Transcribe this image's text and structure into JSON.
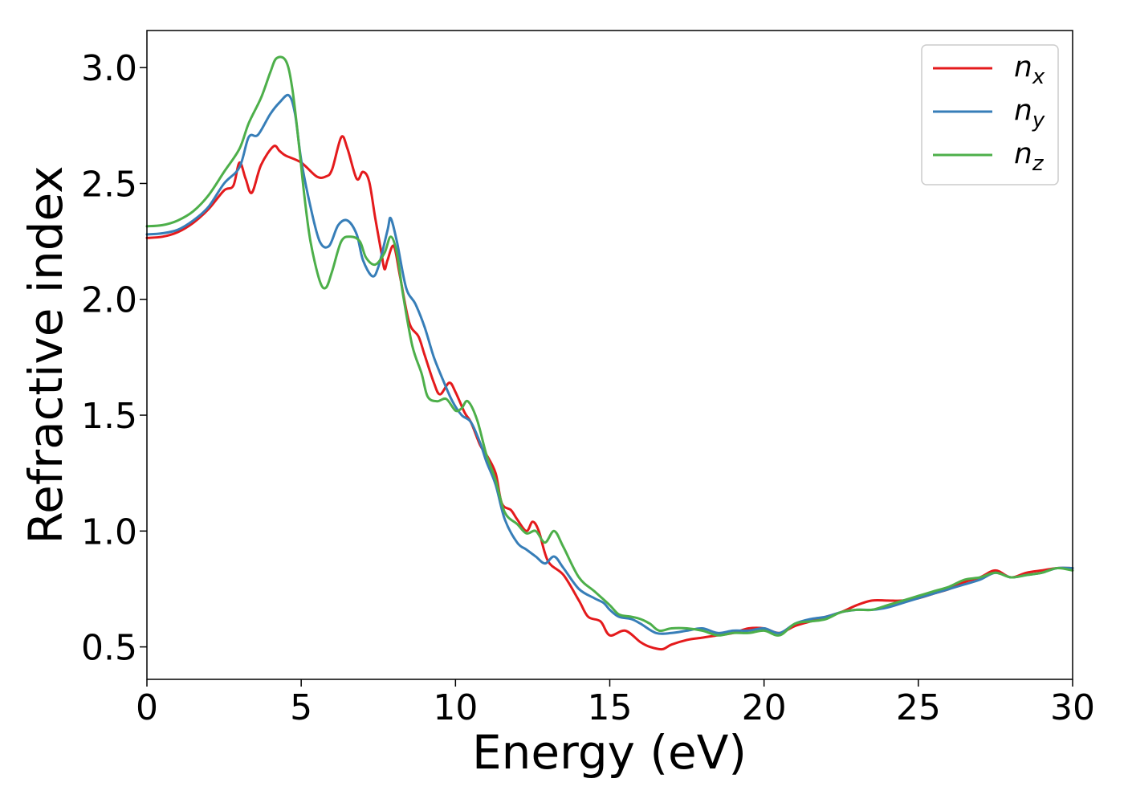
{
  "chart_data": {
    "type": "line",
    "xlabel": "Energy (eV)",
    "ylabel": "Refractive index",
    "xlim": [
      0,
      30
    ],
    "ylim": [
      0.36,
      3.16
    ],
    "xticks": [
      0,
      5,
      10,
      15,
      20,
      25,
      30
    ],
    "yticks": [
      0.5,
      1.0,
      1.5,
      2.0,
      2.5,
      3.0
    ],
    "xtick_labels": [
      "0",
      "5",
      "10",
      "15",
      "20",
      "25",
      "30"
    ],
    "ytick_labels": [
      "0.5",
      "1.0",
      "1.5",
      "2.0",
      "2.5",
      "3.0"
    ],
    "grid": false,
    "legend_position": "top-right",
    "series": [
      {
        "name_base": "n",
        "name_sub": "x",
        "color": "#e41a1c",
        "points": [
          [
            0,
            2.265
          ],
          [
            0.5,
            2.27
          ],
          [
            1,
            2.29
          ],
          [
            1.5,
            2.33
          ],
          [
            2,
            2.39
          ],
          [
            2.5,
            2.47
          ],
          [
            2.8,
            2.49
          ],
          [
            3.0,
            2.59
          ],
          [
            3.2,
            2.52
          ],
          [
            3.4,
            2.46
          ],
          [
            3.7,
            2.58
          ],
          [
            4.1,
            2.66
          ],
          [
            4.3,
            2.64
          ],
          [
            4.5,
            2.62
          ],
          [
            5.0,
            2.59
          ],
          [
            5.5,
            2.53
          ],
          [
            5.8,
            2.53
          ],
          [
            6.0,
            2.56
          ],
          [
            6.3,
            2.7
          ],
          [
            6.5,
            2.65
          ],
          [
            6.8,
            2.52
          ],
          [
            7.0,
            2.55
          ],
          [
            7.2,
            2.51
          ],
          [
            7.4,
            2.35
          ],
          [
            7.6,
            2.2
          ],
          [
            7.7,
            2.13
          ],
          [
            7.8,
            2.17
          ],
          [
            8.0,
            2.23
          ],
          [
            8.2,
            2.1
          ],
          [
            8.5,
            1.9
          ],
          [
            8.8,
            1.84
          ],
          [
            9.0,
            1.76
          ],
          [
            9.3,
            1.64
          ],
          [
            9.5,
            1.59
          ],
          [
            9.8,
            1.64
          ],
          [
            10.0,
            1.6
          ],
          [
            10.3,
            1.51
          ],
          [
            10.5,
            1.47
          ],
          [
            10.8,
            1.37
          ],
          [
            11.0,
            1.33
          ],
          [
            11.3,
            1.25
          ],
          [
            11.5,
            1.12
          ],
          [
            11.8,
            1.09
          ],
          [
            12.0,
            1.05
          ],
          [
            12.3,
            1.0
          ],
          [
            12.5,
            1.04
          ],
          [
            12.7,
            1.0
          ],
          [
            13.0,
            0.87
          ],
          [
            13.5,
            0.81
          ],
          [
            14.0,
            0.7
          ],
          [
            14.3,
            0.63
          ],
          [
            14.7,
            0.61
          ],
          [
            15.0,
            0.55
          ],
          [
            15.5,
            0.57
          ],
          [
            16.0,
            0.52
          ],
          [
            16.3,
            0.5
          ],
          [
            16.7,
            0.49
          ],
          [
            17.0,
            0.51
          ],
          [
            17.5,
            0.53
          ],
          [
            18.0,
            0.54
          ],
          [
            18.5,
            0.55
          ],
          [
            19.0,
            0.56
          ],
          [
            19.5,
            0.58
          ],
          [
            20.0,
            0.58
          ],
          [
            20.5,
            0.56
          ],
          [
            21.0,
            0.59
          ],
          [
            21.5,
            0.61
          ],
          [
            22.0,
            0.63
          ],
          [
            22.5,
            0.65
          ],
          [
            23.0,
            0.68
          ],
          [
            23.5,
            0.7
          ],
          [
            24.0,
            0.7
          ],
          [
            24.5,
            0.7
          ],
          [
            25.0,
            0.71
          ],
          [
            25.5,
            0.73
          ],
          [
            26.0,
            0.75
          ],
          [
            26.5,
            0.78
          ],
          [
            27.0,
            0.8
          ],
          [
            27.5,
            0.83
          ],
          [
            28.0,
            0.8
          ],
          [
            28.5,
            0.82
          ],
          [
            29.0,
            0.83
          ],
          [
            29.5,
            0.84
          ],
          [
            30.0,
            0.84
          ]
        ]
      },
      {
        "name_base": "n",
        "name_sub": "y",
        "color": "#377eb8",
        "points": [
          [
            0,
            2.28
          ],
          [
            0.5,
            2.285
          ],
          [
            1,
            2.3
          ],
          [
            1.5,
            2.34
          ],
          [
            2,
            2.4
          ],
          [
            2.5,
            2.5
          ],
          [
            3.0,
            2.57
          ],
          [
            3.3,
            2.7
          ],
          [
            3.6,
            2.71
          ],
          [
            4.0,
            2.8
          ],
          [
            4.3,
            2.85
          ],
          [
            4.6,
            2.88
          ],
          [
            4.8,
            2.8
          ],
          [
            5.0,
            2.6
          ],
          [
            5.3,
            2.4
          ],
          [
            5.6,
            2.25
          ],
          [
            5.9,
            2.23
          ],
          [
            6.2,
            2.32
          ],
          [
            6.5,
            2.34
          ],
          [
            6.8,
            2.28
          ],
          [
            7.0,
            2.17
          ],
          [
            7.3,
            2.1
          ],
          [
            7.5,
            2.14
          ],
          [
            7.8,
            2.3
          ],
          [
            7.9,
            2.35
          ],
          [
            8.1,
            2.25
          ],
          [
            8.4,
            2.05
          ],
          [
            8.7,
            1.98
          ],
          [
            9.0,
            1.88
          ],
          [
            9.3,
            1.75
          ],
          [
            9.6,
            1.65
          ],
          [
            9.9,
            1.56
          ],
          [
            10.2,
            1.5
          ],
          [
            10.5,
            1.47
          ],
          [
            10.8,
            1.38
          ],
          [
            11.0,
            1.3
          ],
          [
            11.3,
            1.2
          ],
          [
            11.6,
            1.05
          ],
          [
            12.0,
            0.95
          ],
          [
            12.3,
            0.92
          ],
          [
            12.6,
            0.89
          ],
          [
            12.9,
            0.86
          ],
          [
            13.2,
            0.89
          ],
          [
            13.5,
            0.84
          ],
          [
            14.0,
            0.75
          ],
          [
            14.5,
            0.71
          ],
          [
            14.8,
            0.69
          ],
          [
            15.0,
            0.66
          ],
          [
            15.3,
            0.63
          ],
          [
            15.7,
            0.62
          ],
          [
            16.0,
            0.6
          ],
          [
            16.5,
            0.56
          ],
          [
            17.0,
            0.56
          ],
          [
            17.5,
            0.57
          ],
          [
            18.0,
            0.58
          ],
          [
            18.5,
            0.56
          ],
          [
            19.0,
            0.57
          ],
          [
            19.5,
            0.57
          ],
          [
            20.0,
            0.58
          ],
          [
            20.5,
            0.56
          ],
          [
            21.0,
            0.6
          ],
          [
            21.5,
            0.62
          ],
          [
            22.0,
            0.63
          ],
          [
            22.5,
            0.65
          ],
          [
            23.0,
            0.66
          ],
          [
            23.5,
            0.66
          ],
          [
            24.0,
            0.67
          ],
          [
            24.5,
            0.69
          ],
          [
            25.0,
            0.71
          ],
          [
            25.5,
            0.73
          ],
          [
            26.0,
            0.75
          ],
          [
            26.5,
            0.77
          ],
          [
            27.0,
            0.79
          ],
          [
            27.5,
            0.82
          ],
          [
            28.0,
            0.8
          ],
          [
            28.5,
            0.81
          ],
          [
            29.0,
            0.82
          ],
          [
            29.5,
            0.84
          ],
          [
            30.0,
            0.84
          ]
        ]
      },
      {
        "name_base": "n",
        "name_sub": "z",
        "color": "#4daf4a",
        "points": [
          [
            0,
            2.315
          ],
          [
            0.5,
            2.32
          ],
          [
            1,
            2.34
          ],
          [
            1.5,
            2.38
          ],
          [
            2,
            2.45
          ],
          [
            2.5,
            2.55
          ],
          [
            3.0,
            2.65
          ],
          [
            3.3,
            2.76
          ],
          [
            3.7,
            2.87
          ],
          [
            4.0,
            2.98
          ],
          [
            4.2,
            3.04
          ],
          [
            4.5,
            3.03
          ],
          [
            4.7,
            2.92
          ],
          [
            4.9,
            2.7
          ],
          [
            5.1,
            2.45
          ],
          [
            5.3,
            2.25
          ],
          [
            5.6,
            2.08
          ],
          [
            5.8,
            2.05
          ],
          [
            6.0,
            2.12
          ],
          [
            6.3,
            2.25
          ],
          [
            6.6,
            2.27
          ],
          [
            6.9,
            2.25
          ],
          [
            7.1,
            2.18
          ],
          [
            7.4,
            2.15
          ],
          [
            7.7,
            2.2
          ],
          [
            7.9,
            2.27
          ],
          [
            8.1,
            2.2
          ],
          [
            8.3,
            2.02
          ],
          [
            8.6,
            1.8
          ],
          [
            8.9,
            1.68
          ],
          [
            9.1,
            1.58
          ],
          [
            9.4,
            1.56
          ],
          [
            9.7,
            1.57
          ],
          [
            10.0,
            1.52
          ],
          [
            10.2,
            1.53
          ],
          [
            10.4,
            1.56
          ],
          [
            10.7,
            1.48
          ],
          [
            11.0,
            1.33
          ],
          [
            11.3,
            1.22
          ],
          [
            11.6,
            1.08
          ],
          [
            12.0,
            1.03
          ],
          [
            12.3,
            0.99
          ],
          [
            12.6,
            1.0
          ],
          [
            12.9,
            0.95
          ],
          [
            13.2,
            1.0
          ],
          [
            13.5,
            0.93
          ],
          [
            14.0,
            0.8
          ],
          [
            14.5,
            0.74
          ],
          [
            15.0,
            0.68
          ],
          [
            15.3,
            0.64
          ],
          [
            15.7,
            0.63
          ],
          [
            16.0,
            0.62
          ],
          [
            16.3,
            0.6
          ],
          [
            16.6,
            0.57
          ],
          [
            17.0,
            0.58
          ],
          [
            17.5,
            0.58
          ],
          [
            18.0,
            0.57
          ],
          [
            18.5,
            0.55
          ],
          [
            19.0,
            0.56
          ],
          [
            19.5,
            0.56
          ],
          [
            20.0,
            0.57
          ],
          [
            20.5,
            0.55
          ],
          [
            21.0,
            0.6
          ],
          [
            21.5,
            0.61
          ],
          [
            22.0,
            0.62
          ],
          [
            22.5,
            0.65
          ],
          [
            23.0,
            0.66
          ],
          [
            23.5,
            0.66
          ],
          [
            24.0,
            0.68
          ],
          [
            24.5,
            0.7
          ],
          [
            25.0,
            0.72
          ],
          [
            25.5,
            0.74
          ],
          [
            26.0,
            0.76
          ],
          [
            26.5,
            0.79
          ],
          [
            27.0,
            0.8
          ],
          [
            27.5,
            0.82
          ],
          [
            28.0,
            0.8
          ],
          [
            28.5,
            0.81
          ],
          [
            29.0,
            0.82
          ],
          [
            29.5,
            0.84
          ],
          [
            30.0,
            0.83
          ]
        ]
      }
    ]
  }
}
